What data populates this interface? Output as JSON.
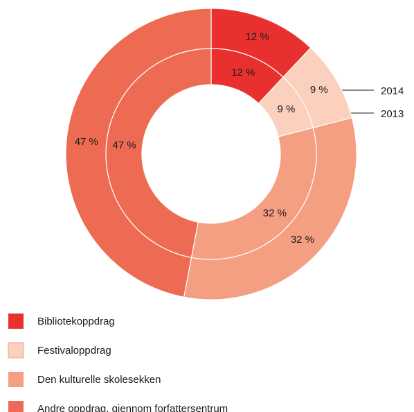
{
  "chart_data": {
    "type": "donut",
    "categories": [
      "Bibliotekoppdrag",
      "Festivaloppdrag",
      "Den kulturelle skolesekken",
      "Andre oppdrag, gjennom forfattersentrum"
    ],
    "colors": [
      "#e8312f",
      "#fbd0bd",
      "#f49e82",
      "#ee6b53"
    ],
    "series": [
      {
        "name": "2014",
        "values": [
          12,
          9,
          32,
          47
        ],
        "value_labels": [
          "12 %",
          "9 %",
          "32 %",
          "47 %"
        ]
      },
      {
        "name": "2013",
        "values": [
          12,
          9,
          32,
          47
        ],
        "value_labels": [
          "12 %",
          "9 %",
          "32 %",
          "47 %"
        ]
      }
    ]
  }
}
